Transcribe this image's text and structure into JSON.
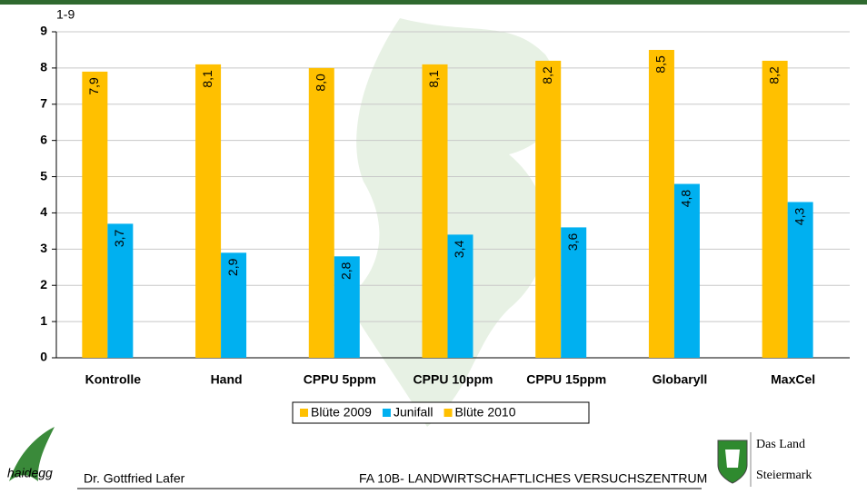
{
  "chart_data": {
    "type": "bar",
    "y_axis_label": "1-9",
    "categories": [
      "Kontrolle",
      "Hand",
      "CPPU 5ppm",
      "CPPU 10ppm",
      "CPPU 15ppm",
      "Globaryll",
      "MaxCel"
    ],
    "series": [
      {
        "name": "Blüte 2009",
        "color": "#ffc000",
        "values": [
          7.9,
          8.1,
          8.0,
          8.1,
          8.2,
          8.5,
          8.2
        ],
        "value_labels": [
          "7,9",
          "8,1",
          "8,0",
          "8,1",
          "8,2",
          "8,5",
          "8,2"
        ]
      },
      {
        "name": "Junifall",
        "color": "#00b0f0",
        "values": [
          3.7,
          2.9,
          2.8,
          3.4,
          3.6,
          4.8,
          4.3
        ],
        "value_labels": [
          "3,7",
          "2,9",
          "2,8",
          "3,4",
          "3,6",
          "4,8",
          "4,3"
        ]
      },
      {
        "name": "Blüte 2010",
        "color": "#ffc000",
        "values": [
          null,
          null,
          null,
          null,
          null,
          null,
          null
        ]
      }
    ],
    "ylim": [
      0,
      9
    ],
    "yticks": [
      0,
      1,
      2,
      3,
      4,
      5,
      6,
      7,
      8,
      9
    ],
    "grid": true,
    "legend": "bottom"
  },
  "footer": {
    "author": "Dr. Gottfried Lafer",
    "institute": "FA 10B- LANDWIRTSCHAFTLICHES VERSUCHSZENTRUM",
    "logo_left": "haidegg",
    "logo_right_line1": "Das Land",
    "logo_right_line2": "Steiermark"
  }
}
